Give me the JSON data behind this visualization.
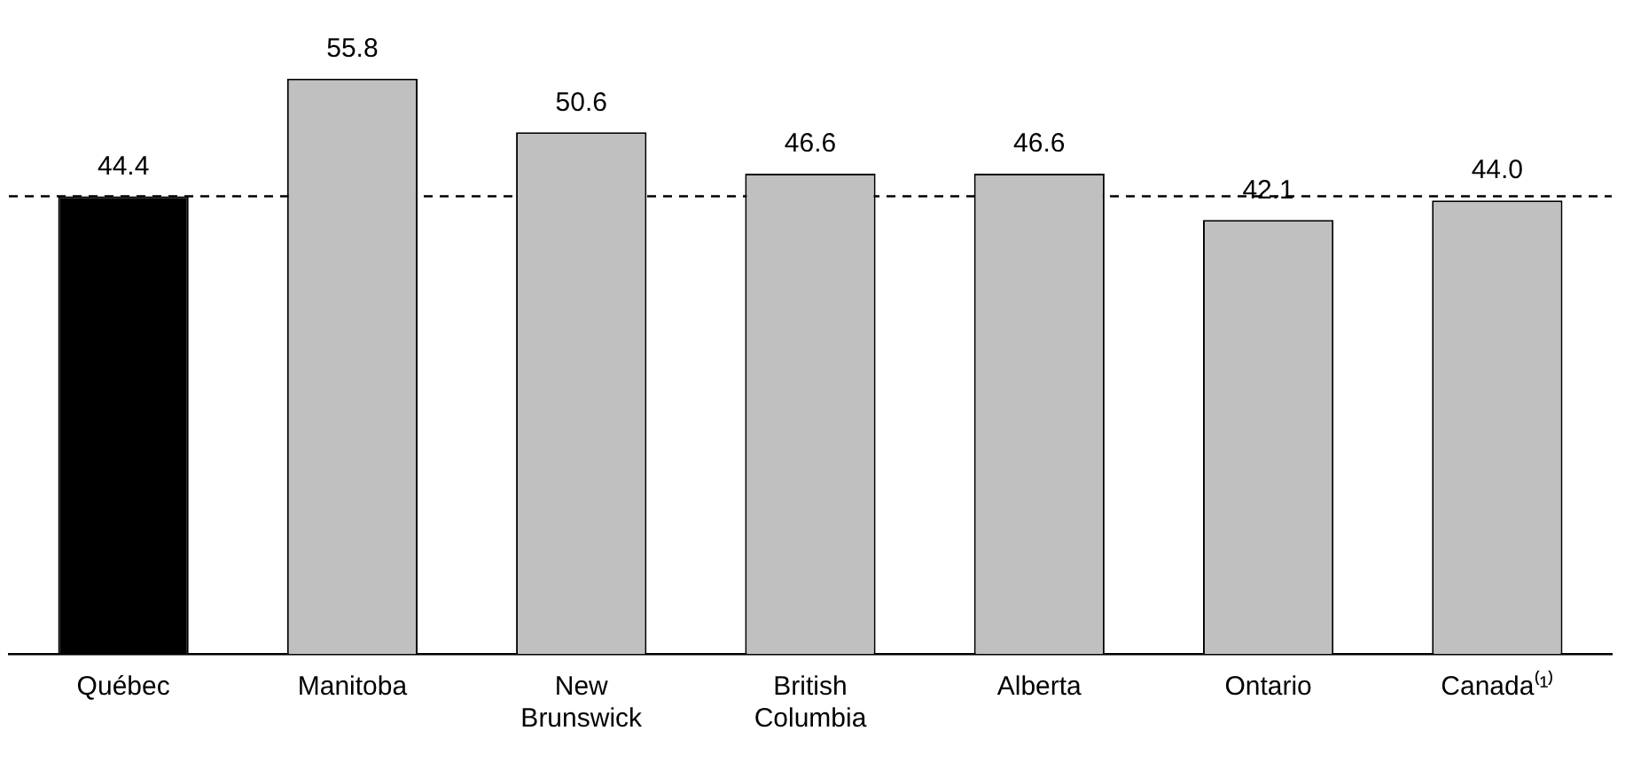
{
  "chart_data": {
    "type": "bar",
    "categories": [
      "Québec",
      "Manitoba",
      "New Brunswick",
      "British Columbia",
      "Alberta",
      "Ontario",
      "Canada⁽¹⁾"
    ],
    "values": [
      44.4,
      55.8,
      50.6,
      46.6,
      46.6,
      42.1,
      44.0
    ],
    "colors": [
      "#000000",
      "#c0c0c0",
      "#c0c0c0",
      "#c0c0c0",
      "#c0c0c0",
      "#c0c0c0",
      "#c0c0c0"
    ],
    "value_labels": [
      "44.4",
      "55.8",
      "50.6",
      "46.6",
      "46.6",
      "42.1",
      "44.0"
    ],
    "ref_lines": [
      {
        "axis": "y",
        "value": 44.4,
        "color": "#000000",
        "line_style": "dashed"
      }
    ],
    "grid": false,
    "legend": false
  }
}
